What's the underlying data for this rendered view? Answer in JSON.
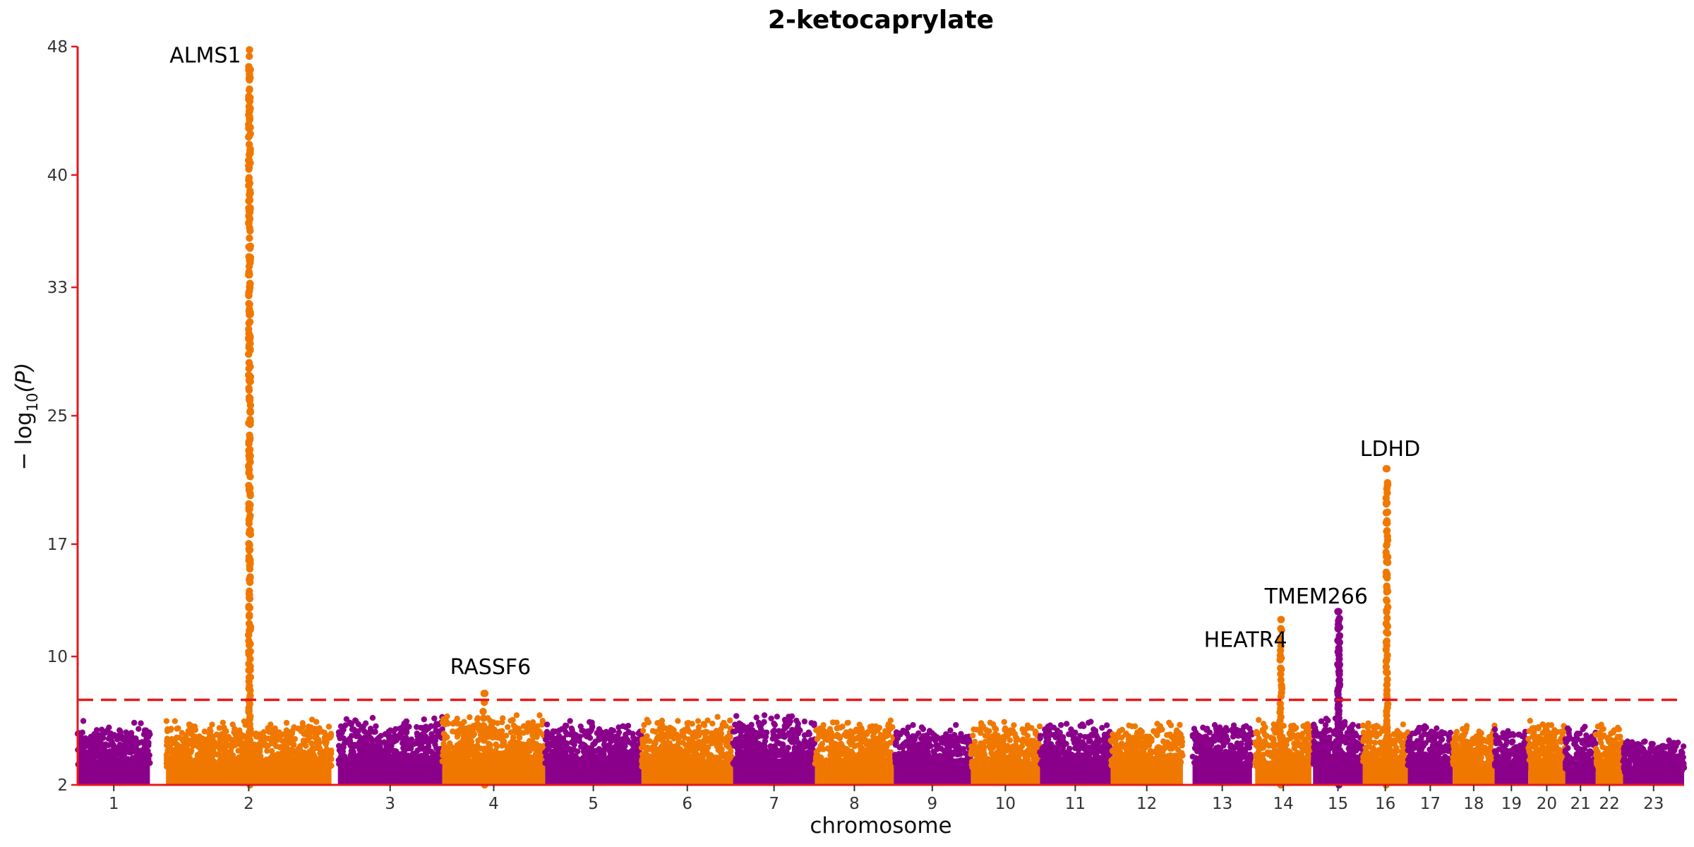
{
  "chart_data": {
    "type": "scatter",
    "title": "2-ketocaprylate",
    "xlabel": "chromosome",
    "ylabel_prefix": "− log",
    "ylabel_sub": "10",
    "ylabel_suffix": "(P)",
    "ylim": [
      2,
      48
    ],
    "yticks": [
      2,
      10,
      17,
      25,
      33,
      40,
      48
    ],
    "significance_threshold": 7.3,
    "colors": {
      "odd": "#8b008b",
      "even": "#f07800",
      "axis": "#e31a1c",
      "threshold": "#e31a1c"
    },
    "chromosomes": [
      {
        "name": "1",
        "start": 0.0,
        "end": 0.045,
        "baseline": 5.5
      },
      {
        "name": "2",
        "start": 0.055,
        "end": 0.158,
        "baseline": 5.6
      },
      {
        "name": "3",
        "start": 0.162,
        "end": 0.227,
        "baseline": 5.8
      },
      {
        "name": "4",
        "start": 0.227,
        "end": 0.291,
        "baseline": 5.9
      },
      {
        "name": "5",
        "start": 0.291,
        "end": 0.351,
        "baseline": 5.6
      },
      {
        "name": "6",
        "start": 0.351,
        "end": 0.408,
        "baseline": 5.7
      },
      {
        "name": "7",
        "start": 0.408,
        "end": 0.459,
        "baseline": 5.9
      },
      {
        "name": "8",
        "start": 0.459,
        "end": 0.508,
        "baseline": 5.7
      },
      {
        "name": "9",
        "start": 0.508,
        "end": 0.556,
        "baseline": 5.3
      },
      {
        "name": "10",
        "start": 0.556,
        "end": 0.599,
        "baseline": 5.5
      },
      {
        "name": "11",
        "start": 0.599,
        "end": 0.643,
        "baseline": 5.6
      },
      {
        "name": "12",
        "start": 0.643,
        "end": 0.688,
        "baseline": 5.5
      },
      {
        "name": "13",
        "start": 0.694,
        "end": 0.731,
        "baseline": 5.5
      },
      {
        "name": "14",
        "start": 0.733,
        "end": 0.768,
        "baseline": 5.6
      },
      {
        "name": "15",
        "start": 0.769,
        "end": 0.8,
        "baseline": 5.8
      },
      {
        "name": "16",
        "start": 0.8,
        "end": 0.828,
        "baseline": 5.5
      },
      {
        "name": "17",
        "start": 0.828,
        "end": 0.856,
        "baseline": 5.4
      },
      {
        "name": "18",
        "start": 0.856,
        "end": 0.882,
        "baseline": 5.4
      },
      {
        "name": "19",
        "start": 0.882,
        "end": 0.903,
        "baseline": 5.3
      },
      {
        "name": "20",
        "start": 0.903,
        "end": 0.926,
        "baseline": 5.8
      },
      {
        "name": "21",
        "start": 0.926,
        "end": 0.945,
        "baseline": 5.2
      },
      {
        "name": "22",
        "start": 0.945,
        "end": 0.962,
        "baseline": 5.4
      },
      {
        "name": "23",
        "start": 0.962,
        "end": 1.0,
        "baseline": 4.6
      }
    ],
    "peaks": [
      {
        "chr": "2",
        "pos": 0.107,
        "max": 47.8,
        "count": 260,
        "gene": "ALMS1"
      },
      {
        "chr": "4",
        "pos": 0.253,
        "max": 7.7,
        "count": 12,
        "gene": "RASSF6"
      },
      {
        "chr": "14",
        "pos": 0.749,
        "max": 12.3,
        "count": 35,
        "gene": "HEATR4"
      },
      {
        "chr": "15",
        "pos": 0.785,
        "max": 12.8,
        "count": 60,
        "gene": "TMEM266"
      },
      {
        "chr": "16",
        "pos": 0.815,
        "max": 21.7,
        "count": 80,
        "gene": "LDHD"
      }
    ],
    "annotations": [
      {
        "text": "ALMS1",
        "x_frac": 0.107,
        "y": 47.0,
        "anchor": "end"
      },
      {
        "text": "RASSF6",
        "x_frac": 0.257,
        "y": 8.9,
        "anchor": "middle"
      },
      {
        "text": "HEATR4",
        "x_frac": 0.727,
        "y": 10.6,
        "anchor": "middle"
      },
      {
        "text": "TMEM266",
        "x_frac": 0.771,
        "y": 13.3,
        "anchor": "middle"
      },
      {
        "text": "LDHD",
        "x_frac": 0.817,
        "y": 22.5,
        "anchor": "middle"
      }
    ]
  }
}
